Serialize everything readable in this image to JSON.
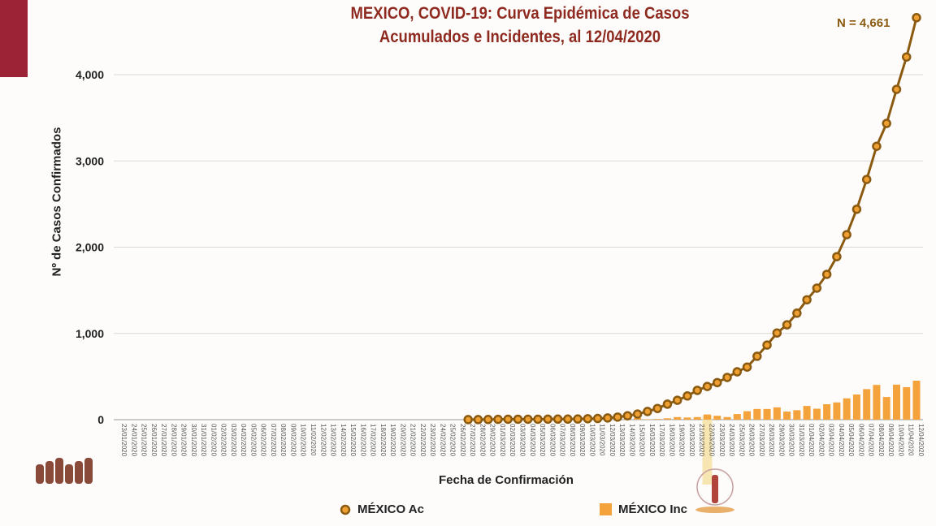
{
  "chart_data": {
    "type": "bar+line",
    "title": "MEXICO, COVID-19: Curva Epidémica de Casos Acumulados e Incidentes, al 12/04/2020",
    "title_lines": [
      "MEXICO, COVID-19: Curva Epidémica de Casos",
      "Acumulados e Incidentes, al 12/04/2020"
    ],
    "annotation": "N = 4,661",
    "xlabel": "Fecha de Confirmación",
    "ylabel": "Nº de Casos Confirmados",
    "ylim": [
      0,
      4661
    ],
    "yticks": [
      0,
      1000,
      2000,
      3000,
      4000
    ],
    "ytick_labels": [
      "0",
      "1,000",
      "2,000",
      "3,000",
      "4,000"
    ],
    "grid": true,
    "legend_position": "bottom",
    "highlighted_category": "22/03/2020",
    "categories": [
      "23/01/2020",
      "24/01/2020",
      "25/01/2020",
      "26/01/2020",
      "27/01/2020",
      "28/01/2020",
      "29/01/2020",
      "30/01/2020",
      "31/01/2020",
      "01/02/2020",
      "02/02/2020",
      "03/02/2020",
      "04/02/2020",
      "05/02/2020",
      "06/02/2020",
      "07/02/2020",
      "08/02/2020",
      "09/02/2020",
      "10/02/2020",
      "11/02/2020",
      "12/02/2020",
      "13/02/2020",
      "14/02/2020",
      "15/02/2020",
      "16/02/2020",
      "17/02/2020",
      "18/02/2020",
      "19/02/2020",
      "20/02/2020",
      "21/02/2020",
      "22/02/2020",
      "23/02/2020",
      "24/02/2020",
      "25/02/2020",
      "26/02/2020",
      "27/02/2020",
      "28/02/2020",
      "29/02/2020",
      "01/03/2020",
      "02/03/2020",
      "03/03/2020",
      "04/03/2020",
      "05/03/2020",
      "06/03/2020",
      "07/03/2020",
      "08/03/2020",
      "09/03/2020",
      "10/03/2020",
      "11/03/2020",
      "12/03/2020",
      "13/03/2020",
      "14/03/2020",
      "15/03/2020",
      "16/03/2020",
      "17/03/2020",
      "18/03/2020",
      "19/03/2020",
      "20/03/2020",
      "21/03/2020",
      "22/03/2020",
      "23/03/2020",
      "24/03/2020",
      "25/03/2020",
      "26/03/2020",
      "27/03/2020",
      "28/03/2020",
      "29/03/2020",
      "30/03/2020",
      "31/03/2020",
      "01/04/2020",
      "02/04/2020",
      "03/04/2020",
      "04/04/2020",
      "05/04/2020",
      "06/04/2020",
      "07/04/2020",
      "08/04/2020",
      "09/04/2020",
      "10/04/2020",
      "11/04/2020",
      "12/04/2020"
    ],
    "series": [
      {
        "name": "MÉXICO Ac",
        "type": "line",
        "color": "#8a5a10",
        "marker_fill": "#f0a030",
        "values": [
          null,
          null,
          null,
          null,
          null,
          null,
          null,
          null,
          null,
          null,
          null,
          null,
          null,
          null,
          null,
          null,
          null,
          null,
          null,
          null,
          null,
          null,
          null,
          null,
          null,
          null,
          null,
          null,
          null,
          null,
          null,
          null,
          null,
          null,
          null,
          1,
          1,
          2,
          4,
          5,
          5,
          5,
          5,
          6,
          7,
          7,
          8,
          11,
          14,
          20,
          30,
          45,
          65,
          95,
          130,
          180,
          225,
          275,
          340,
          385,
          430,
          490,
          555,
          610,
          735,
          865,
          1005,
          1100,
          1235,
          1390,
          1525,
          1685,
          1890,
          2145,
          2440,
          2785,
          3170,
          3435,
          3830,
          4205,
          4661
        ]
      },
      {
        "name": "MÉXICO Inc",
        "type": "bar",
        "color": "#f3a23c",
        "values": [
          null,
          null,
          null,
          null,
          null,
          null,
          null,
          null,
          null,
          null,
          null,
          null,
          null,
          null,
          null,
          null,
          null,
          null,
          null,
          null,
          null,
          null,
          null,
          null,
          null,
          null,
          null,
          null,
          null,
          null,
          null,
          null,
          null,
          null,
          null,
          0,
          0,
          1,
          2,
          1,
          0,
          0,
          0,
          1,
          1,
          0,
          1,
          3,
          3,
          6,
          8,
          12,
          20,
          5,
          8,
          16,
          30,
          25,
          30,
          60,
          45,
          30,
          65,
          98,
          124,
          124,
          143,
          94,
          110,
          159,
          127,
          179,
          200,
          247,
          292,
          354,
          403,
          263,
          406,
          377,
          452
        ]
      }
    ]
  }
}
